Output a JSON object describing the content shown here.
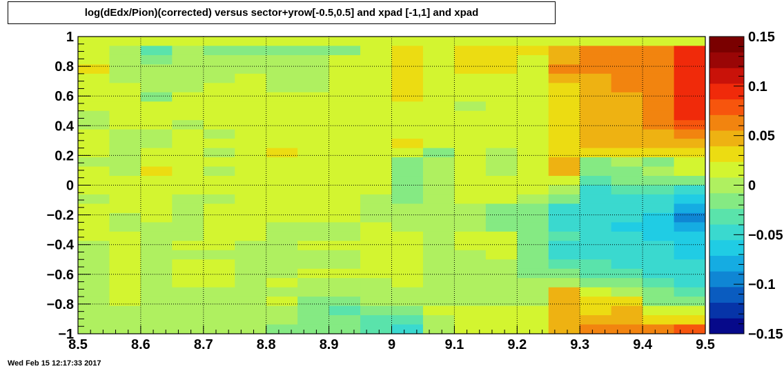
{
  "chart_data": {
    "type": "heatmap",
    "title": "log(dEdx/Pion)(corrected) versus sector+yrow[-0.5,0.5] and xpad [-1,1] and  xpad",
    "xlabel": "",
    "ylabel": "",
    "xlim": [
      8.5,
      9.5
    ],
    "ylim": [
      -1,
      1
    ],
    "x_ticks": [
      "8.5",
      "8.6",
      "8.7",
      "8.8",
      "8.9",
      "9",
      "9.1",
      "9.2",
      "9.3",
      "9.4",
      "9.5"
    ],
    "y_ticks": [
      "−1",
      "−0.8",
      "−0.6",
      "−0.4",
      "−0.2",
      "0",
      "0.2",
      "0.4",
      "0.6",
      "0.8",
      "1"
    ],
    "colorbar": {
      "range": [
        -0.15,
        0.15
      ],
      "ticks": [
        "−0.15",
        "−0.1",
        "−0.05",
        "0",
        "0.05",
        "0.1",
        "0.15"
      ],
      "colors": [
        "#06098a",
        "#0634a8",
        "#0a5cc0",
        "#0f86d4",
        "#15ace2",
        "#20cce4",
        "#3ad9cf",
        "#5ae3ab",
        "#85ea83",
        "#aff060",
        "#d3f530",
        "#ecdc12",
        "#eeb212",
        "#f2840f",
        "#f7550d",
        "#f02a0a",
        "#c91209",
        "#9a0606",
        "#7a0000"
      ]
    },
    "grid": true,
    "row_order": "top-to-bottom",
    "rows": [
      [
        0.01,
        0.01,
        0.01,
        0.01,
        0.01,
        0.01,
        0.01,
        0.01,
        0.01,
        0.01,
        0.01,
        0.01,
        0.01,
        0.01,
        0.01,
        0.01,
        0.01,
        0.01,
        0.01,
        0.01
      ],
      [
        0.01,
        0.0,
        -0.03,
        0.0,
        -0.01,
        -0.01,
        -0.01,
        -0.01,
        -0.01,
        0.01,
        0.03,
        0.01,
        0.03,
        0.03,
        0.03,
        0.04,
        0.06,
        0.06,
        0.07,
        0.1
      ],
      [
        0.01,
        0.0,
        -0.01,
        0.0,
        0.0,
        0.0,
        0.0,
        0.0,
        0.01,
        0.01,
        0.03,
        0.01,
        0.03,
        0.03,
        0.02,
        0.05,
        0.06,
        0.06,
        0.07,
        0.1
      ],
      [
        0.03,
        0.0,
        0.0,
        0.0,
        0.0,
        0.0,
        0.0,
        0.0,
        0.01,
        0.01,
        0.03,
        0.01,
        0.03,
        0.03,
        0.02,
        0.06,
        0.06,
        0.07,
        0.07,
        0.1
      ],
      [
        0.01,
        0.0,
        0.0,
        0.0,
        0.0,
        0.01,
        0.0,
        0.0,
        0.01,
        0.01,
        0.03,
        0.01,
        0.01,
        0.01,
        0.02,
        0.04,
        0.05,
        0.06,
        0.07,
        0.1
      ],
      [
        0.01,
        0.01,
        0.0,
        0.0,
        0.01,
        0.01,
        0.0,
        0.0,
        0.01,
        0.01,
        0.03,
        0.01,
        0.01,
        0.01,
        0.02,
        0.03,
        0.05,
        0.06,
        0.07,
        0.1
      ],
      [
        0.01,
        0.01,
        -0.01,
        0.01,
        0.01,
        0.01,
        0.01,
        0.01,
        0.01,
        0.01,
        0.03,
        0.01,
        0.01,
        0.01,
        0.02,
        0.03,
        0.05,
        0.05,
        0.07,
        0.1
      ],
      [
        0.01,
        0.01,
        0.01,
        0.01,
        0.01,
        0.01,
        0.01,
        0.01,
        0.01,
        0.01,
        0.01,
        0.01,
        0.0,
        0.01,
        0.02,
        0.03,
        0.05,
        0.05,
        0.07,
        0.1
      ],
      [
        0.0,
        0.01,
        0.01,
        0.01,
        0.01,
        0.01,
        0.01,
        0.01,
        0.01,
        0.01,
        0.02,
        0.01,
        0.01,
        0.01,
        0.02,
        0.03,
        0.05,
        0.05,
        0.07,
        0.09
      ],
      [
        0.0,
        0.01,
        0.01,
        0.0,
        0.01,
        0.01,
        0.01,
        0.01,
        0.01,
        0.01,
        0.02,
        0.01,
        0.01,
        0.01,
        0.01,
        0.03,
        0.05,
        0.05,
        0.07,
        0.08
      ],
      [
        0.01,
        0.0,
        0.0,
        0.01,
        0.0,
        0.01,
        0.01,
        0.01,
        0.01,
        0.01,
        0.02,
        0.01,
        0.01,
        0.01,
        0.01,
        0.03,
        0.05,
        0.05,
        0.05,
        0.06
      ],
      [
        0.01,
        0.0,
        0.0,
        0.01,
        0.01,
        0.01,
        0.01,
        0.01,
        0.01,
        0.01,
        0.03,
        0.01,
        0.01,
        0.01,
        0.01,
        0.03,
        0.05,
        0.04,
        0.04,
        0.05
      ],
      [
        0.01,
        0.0,
        0.01,
        0.01,
        0.0,
        0.01,
        0.03,
        0.01,
        0.01,
        0.01,
        0.01,
        -0.01,
        0.01,
        0.0,
        0.01,
        0.03,
        0.03,
        0.03,
        0.03,
        0.03
      ],
      [
        0.0,
        0.0,
        0.01,
        0.01,
        0.01,
        0.01,
        0.01,
        0.01,
        0.01,
        0.01,
        -0.01,
        0.0,
        0.01,
        0.0,
        0.01,
        0.05,
        -0.02,
        0.0,
        -0.01,
        0.01
      ],
      [
        0.01,
        0.0,
        0.03,
        0.01,
        0.0,
        0.01,
        0.01,
        0.01,
        0.01,
        0.01,
        -0.01,
        0.0,
        0.01,
        0.0,
        0.01,
        0.05,
        -0.02,
        -0.01,
        0.0,
        0.01
      ],
      [
        0.01,
        0.01,
        0.01,
        0.01,
        0.01,
        0.01,
        0.01,
        0.01,
        0.01,
        0.01,
        -0.01,
        0.0,
        0.01,
        0.01,
        0.01,
        0.01,
        -0.03,
        -0.02,
        -0.02,
        -0.02
      ],
      [
        0.01,
        0.01,
        0.01,
        0.01,
        0.01,
        0.01,
        0.01,
        0.01,
        0.01,
        0.01,
        -0.01,
        0.0,
        0.01,
        0.01,
        0.01,
        0.0,
        -0.04,
        -0.03,
        -0.03,
        -0.04
      ],
      [
        0.0,
        0.01,
        0.01,
        0.0,
        0.0,
        0.01,
        0.01,
        0.01,
        0.01,
        0.0,
        -0.01,
        0.0,
        0.01,
        0.01,
        0.0,
        -0.01,
        -0.04,
        -0.04,
        -0.04,
        -0.06
      ],
      [
        0.01,
        0.01,
        0.01,
        0.0,
        0.01,
        0.01,
        0.01,
        0.01,
        0.01,
        0.0,
        0.0,
        0.0,
        0.0,
        -0.01,
        -0.01,
        -0.04,
        -0.05,
        -0.05,
        -0.05,
        -0.08
      ],
      [
        0.01,
        0.0,
        0.01,
        0.0,
        0.01,
        0.01,
        0.01,
        0.01,
        0.01,
        0.0,
        0.0,
        0.0,
        0.0,
        -0.01,
        -0.02,
        -0.04,
        -0.05,
        -0.05,
        -0.06,
        -0.09
      ],
      [
        0.01,
        0.0,
        0.0,
        0.0,
        0.01,
        0.01,
        0.0,
        0.0,
        0.0,
        0.01,
        0.0,
        0.0,
        0.0,
        -0.01,
        -0.02,
        -0.04,
        -0.05,
        -0.06,
        -0.06,
        -0.08
      ],
      [
        0.01,
        0.01,
        0.0,
        0.0,
        0.01,
        0.01,
        0.0,
        0.0,
        0.0,
        0.01,
        0.01,
        0.0,
        0.01,
        0.01,
        -0.02,
        -0.03,
        -0.05,
        -0.05,
        -0.06,
        -0.07
      ],
      [
        0.0,
        0.01,
        0.0,
        0.01,
        0.01,
        0.0,
        0.0,
        0.01,
        0.01,
        0.01,
        0.01,
        0.0,
        0.01,
        0.01,
        -0.02,
        -0.04,
        -0.04,
        -0.05,
        -0.05,
        -0.07
      ],
      [
        0.0,
        0.01,
        0.0,
        0.0,
        0.0,
        0.0,
        0.0,
        0.0,
        0.0,
        0.01,
        0.01,
        0.0,
        0.0,
        0.01,
        -0.02,
        -0.04,
        -0.04,
        -0.04,
        -0.05,
        -0.06
      ],
      [
        0.0,
        0.01,
        0.0,
        0.01,
        0.01,
        0.0,
        0.0,
        0.0,
        0.0,
        0.01,
        0.01,
        0.0,
        0.0,
        0.0,
        -0.02,
        -0.03,
        -0.03,
        -0.04,
        -0.04,
        -0.04
      ],
      [
        0.0,
        0.01,
        0.0,
        0.01,
        0.02,
        0.0,
        0.0,
        0.01,
        0.01,
        0.01,
        0.01,
        0.0,
        0.0,
        0.0,
        -0.01,
        -0.02,
        -0.03,
        -0.03,
        -0.04,
        -0.04
      ],
      [
        0.0,
        0.01,
        0.0,
        0.01,
        0.01,
        0.0,
        0.01,
        0.0,
        0.0,
        0.0,
        0.01,
        0.0,
        0.0,
        0.0,
        0.0,
        0.0,
        -0.01,
        -0.02,
        -0.03,
        -0.04
      ],
      [
        0.0,
        0.01,
        0.0,
        0.0,
        0.0,
        0.0,
        0.0,
        0.0,
        0.0,
        0.0,
        0.0,
        0.0,
        0.0,
        0.0,
        0.0,
        0.04,
        0.01,
        0.0,
        -0.02,
        -0.03
      ],
      [
        0.0,
        0.01,
        0.0,
        0.0,
        0.0,
        0.0,
        0.01,
        -0.01,
        -0.01,
        0.0,
        0.0,
        0.0,
        0.0,
        0.0,
        0.0,
        0.04,
        0.03,
        0.03,
        -0.01,
        -0.02
      ],
      [
        0.0,
        0.0,
        0.0,
        0.0,
        0.0,
        0.0,
        0.0,
        -0.01,
        -0.03,
        -0.01,
        -0.01,
        0.01,
        0.01,
        0.01,
        0.01,
        0.04,
        0.03,
        0.04,
        0.02,
        0.01
      ],
      [
        0.0,
        0.0,
        0.0,
        0.0,
        0.0,
        0.0,
        0.0,
        -0.01,
        -0.02,
        -0.03,
        -0.03,
        0.0,
        0.01,
        0.01,
        0.01,
        0.04,
        0.05,
        0.05,
        0.03,
        0.03
      ],
      [
        0.0,
        0.0,
        0.0,
        0.0,
        0.0,
        0.0,
        -0.01,
        -0.01,
        -0.02,
        -0.03,
        -0.04,
        0.0,
        0.01,
        0.01,
        0.02,
        0.04,
        0.06,
        0.06,
        0.07,
        0.08
      ]
    ]
  },
  "footer": {
    "timestamp": "Wed Feb 15 12:17:33 2017"
  }
}
